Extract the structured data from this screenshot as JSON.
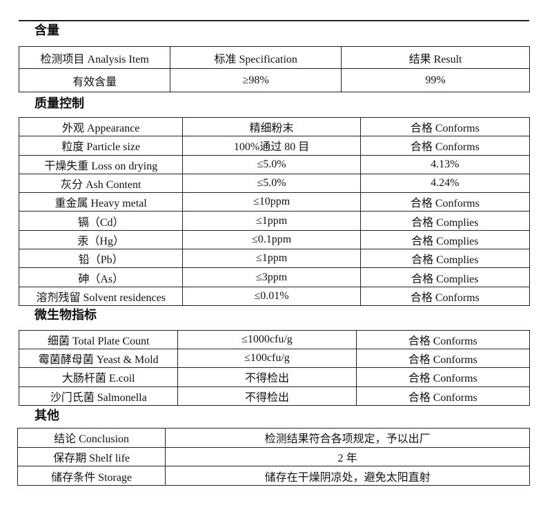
{
  "sections": [
    {
      "title": "含量",
      "rows": [
        [
          "检测项目  Analysis Item",
          "标准    Specification",
          "结果  Result"
        ],
        [
          "有效含量",
          "≥98%",
          "99%"
        ]
      ]
    },
    {
      "title": "质量控制",
      "rows": [
        [
          "外观  Appearance",
          "精细粉末",
          "合格 Conforms"
        ],
        [
          "粒度  Particle size",
          "100%通过 80 目",
          "合格 Conforms"
        ],
        [
          "干燥失重 Loss on drying",
          "≤5.0%",
          "4.13%"
        ],
        [
          "灰分 Ash Content",
          "≤5.0%",
          "4.24%"
        ],
        [
          "重金属  Heavy metal",
          "≤10ppm",
          "合格 Conforms"
        ],
        [
          "镉（Cd）",
          "≤1ppm",
          "合格 Complies"
        ],
        [
          "汞（Hg）",
          "≤0.1ppm",
          "合格 Complies"
        ],
        [
          "铅（Pb）",
          "≤1ppm",
          "合格 Complies"
        ],
        [
          "砷（As）",
          "≤3ppm",
          "合格 Complies"
        ],
        [
          "溶剂残留 Solvent residences",
          "≤0.01%",
          "合格 Conforms"
        ]
      ]
    },
    {
      "title": "微生物指标",
      "rows": [
        [
          "细菌  Total Plate Count",
          "≤1000cfu/g",
          "合格 Conforms"
        ],
        [
          "霉菌酵母菌  Yeast & Mold",
          "≤100cfu/g",
          "合格 Conforms"
        ],
        [
          "大肠杆菌    E.coil",
          "不得检出",
          "合格 Conforms"
        ],
        [
          "沙门氏菌    Salmonella",
          "不得检出",
          "合格 Conforms"
        ]
      ]
    },
    {
      "title": "其他",
      "rows": [
        [
          "结论  Conclusion",
          "检测结果符合各项规定，予以出厂"
        ],
        [
          "保存期  Shelf life",
          "2 年"
        ],
        [
          "储存条件 Storage",
          "储存在干燥阴凉处，避免太阳直射"
        ]
      ]
    }
  ]
}
